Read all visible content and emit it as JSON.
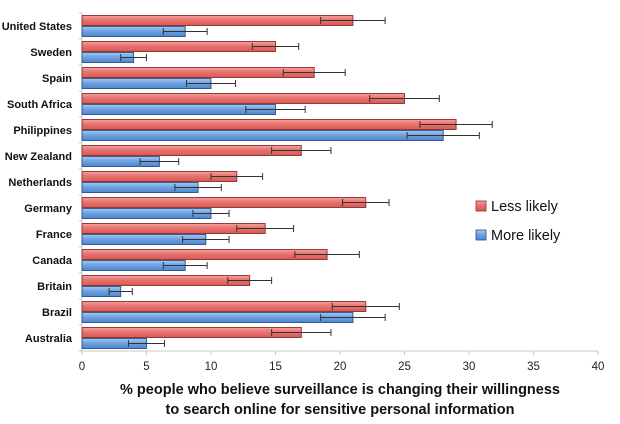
{
  "chart_data": {
    "type": "bar",
    "orientation": "horizontal",
    "title": "",
    "xlabel_lines": [
      "% people who believe surveillance is changing their willingness",
      "to search online for sensitive personal information"
    ],
    "ylabel": "",
    "xlim": [
      0,
      40
    ],
    "x_ticks": [
      "0",
      "5",
      "10",
      "15",
      "20",
      "25",
      "30",
      "35",
      "40"
    ],
    "categories": [
      "United States",
      "Sweden",
      "Spain",
      "South Africa",
      "Philippines",
      "New Zealand",
      "Netherlands",
      "Germany",
      "France",
      "Canada",
      "Britain",
      "Brazil",
      "Australia"
    ],
    "series": [
      {
        "name": "Less likely",
        "color": "#e8726e",
        "values": [
          21,
          15,
          18,
          25,
          29,
          17,
          12,
          22,
          14.2,
          19,
          13,
          22,
          17
        ],
        "error": [
          2.5,
          1.8,
          2.4,
          2.7,
          2.8,
          2.3,
          2.0,
          1.8,
          2.2,
          2.5,
          1.7,
          2.6,
          2.3
        ]
      },
      {
        "name": "More likely",
        "color": "#6fa3e0",
        "values": [
          8,
          4,
          10,
          15,
          28,
          6,
          9,
          10,
          9.6,
          8,
          3,
          21,
          5
        ],
        "error": [
          1.7,
          1.0,
          1.9,
          2.3,
          2.8,
          1.5,
          1.8,
          1.4,
          1.8,
          1.7,
          0.9,
          2.5,
          1.4
        ]
      }
    ],
    "legend_position": "right",
    "grid": false
  }
}
